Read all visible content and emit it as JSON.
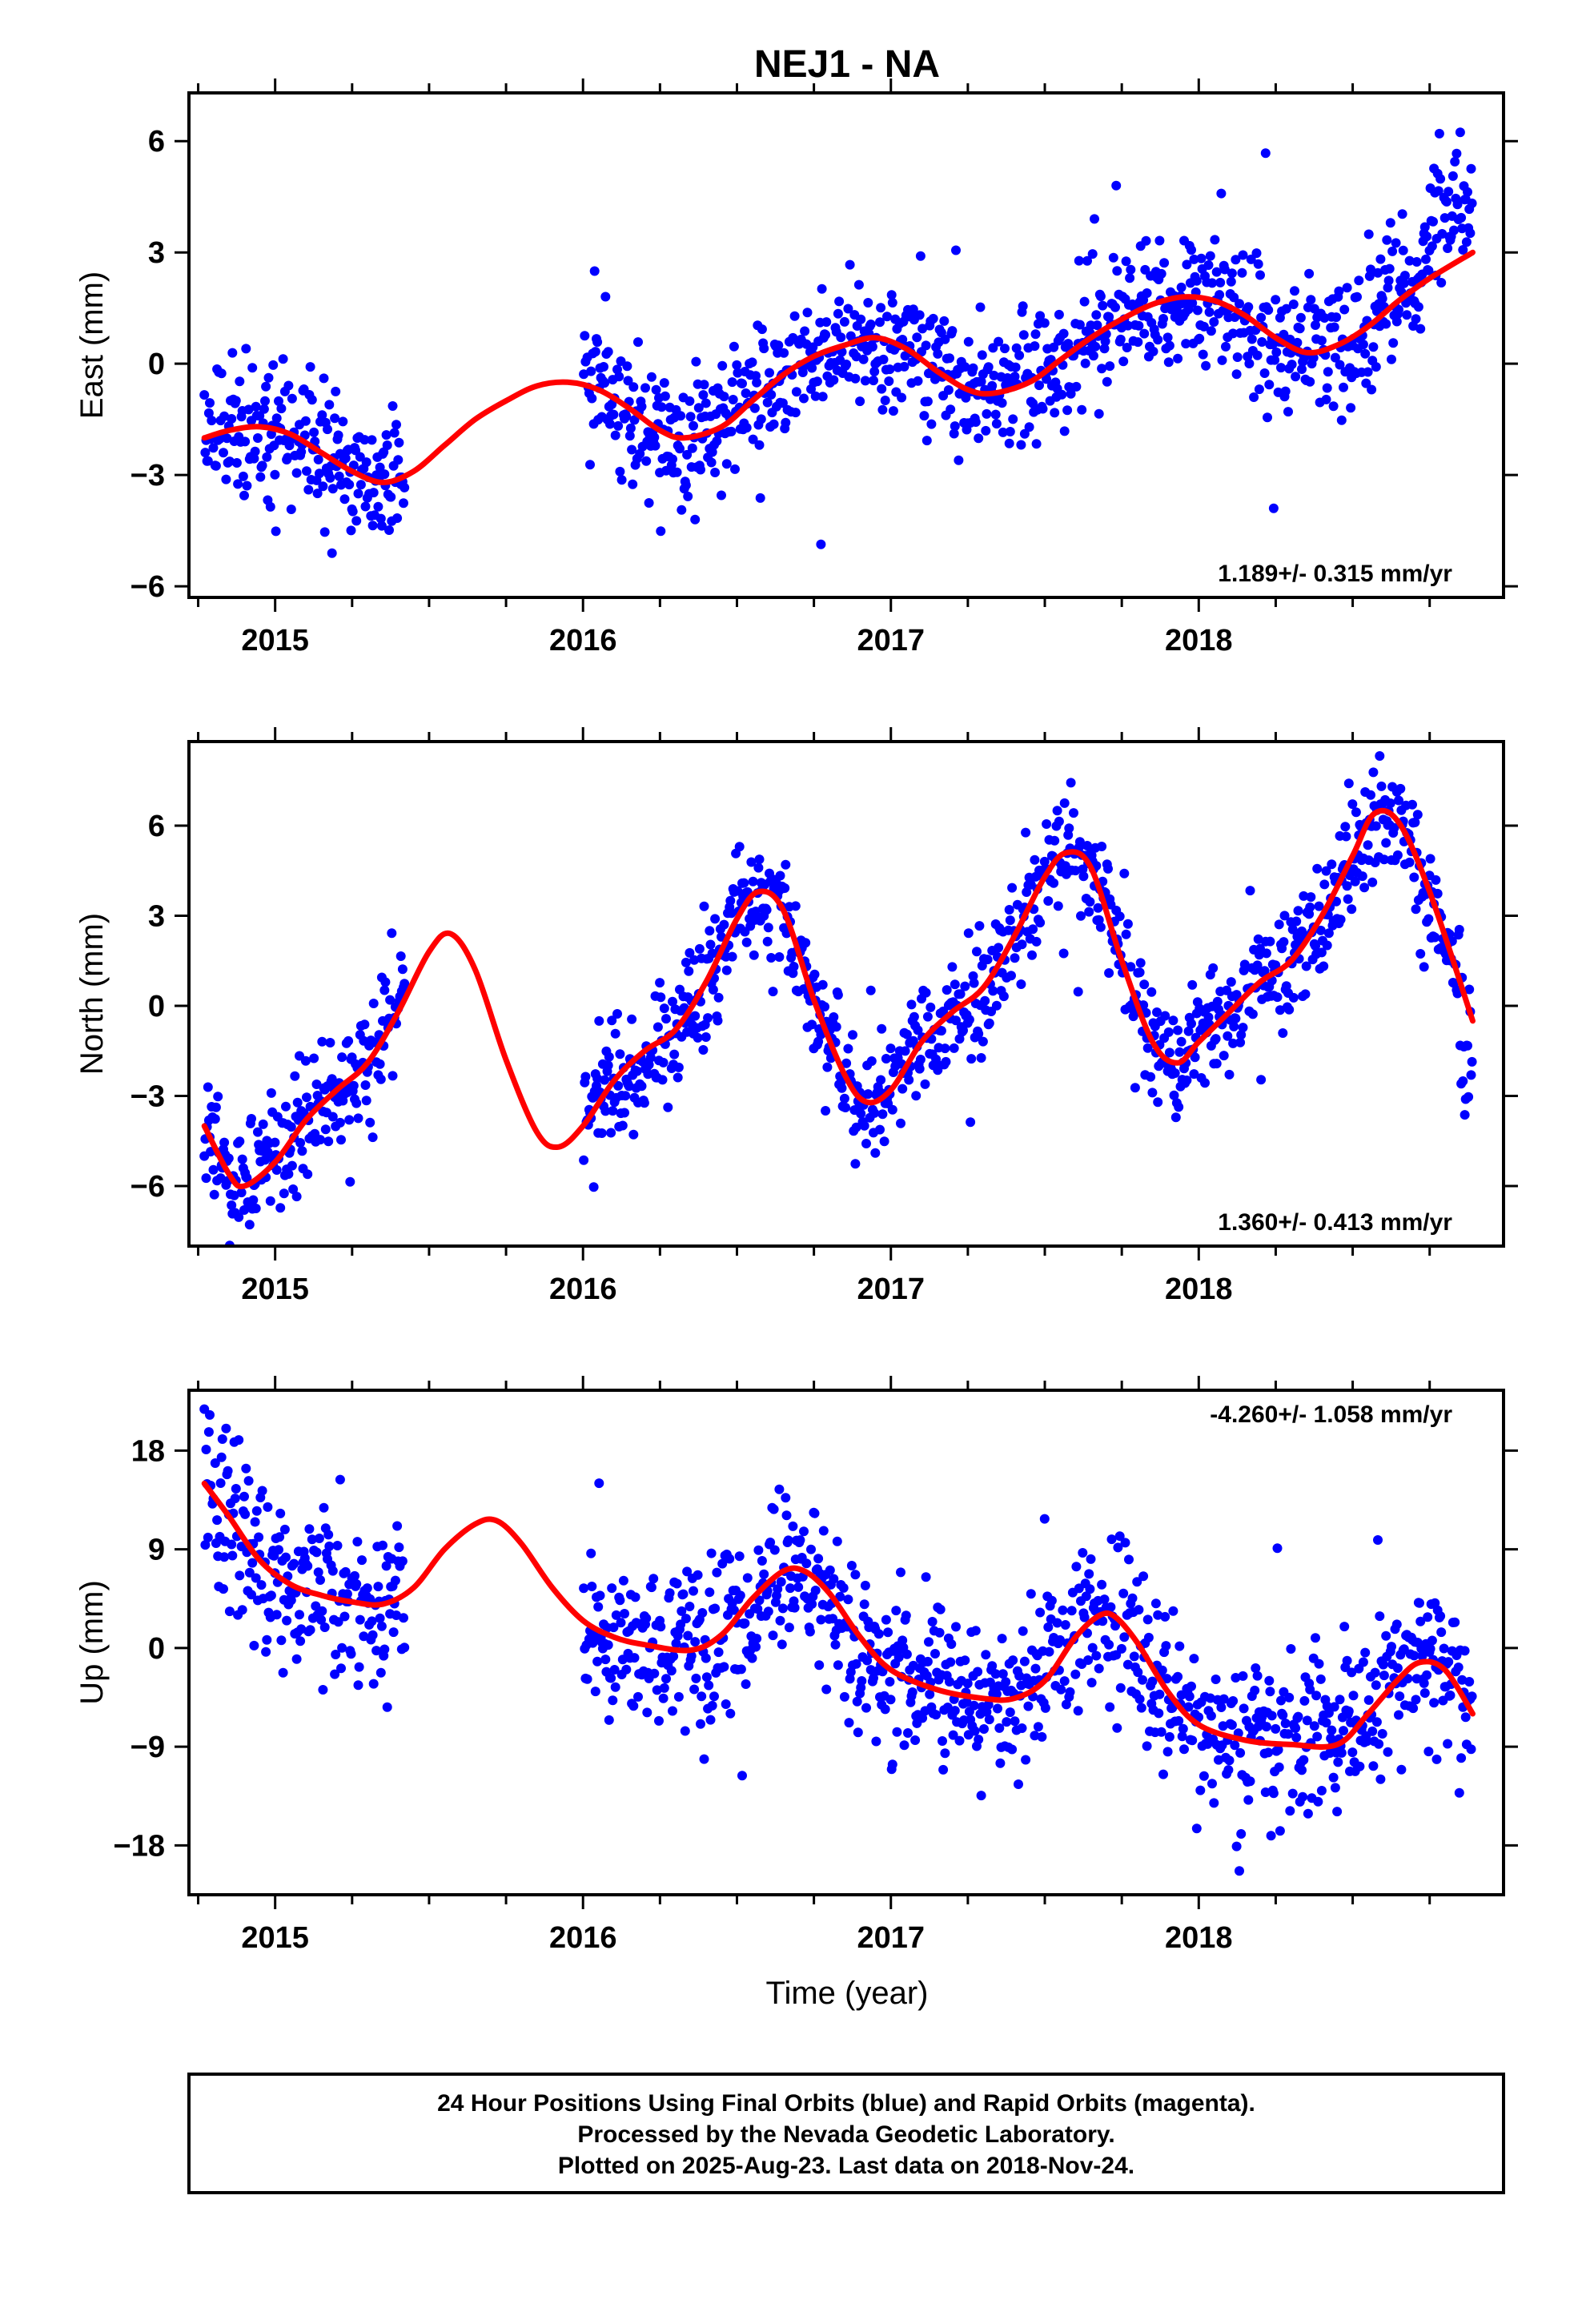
{
  "title": "NEJ1 - NA",
  "footer": {
    "lines": [
      "24 Hour Positions Using Final Orbits (blue) and Rapid Orbits (magenta).",
      "Processed by the Nevada Geodetic Laboratory.",
      "Plotted on 2025-Aug-23. Last data on 2018-Nov-24."
    ]
  },
  "colors": {
    "points": "#0000ff",
    "fit": "#ff0000",
    "frame": "#000000"
  },
  "chart_data": [
    {
      "type": "scatter",
      "ylabel": "East (mm)",
      "xlabel": "",
      "xlim": [
        2014.72,
        2018.99
      ],
      "ylim": [
        -6.3,
        7.3
      ],
      "xticks": [
        2015,
        2016,
        2017,
        2018
      ],
      "yticks": [
        -6,
        -3,
        0,
        3,
        6
      ],
      "ytick_labels": [
        "−6",
        "−3",
        "0",
        "3",
        "6"
      ],
      "rate": "1.189+/- 0.315 mm/yr",
      "rate_position": "bottom-right",
      "gap": [
        2015.42,
        2016.0
      ],
      "fit": {
        "x": [
          2014.77,
          2014.85,
          2014.95,
          2015.05,
          2015.15,
          2015.25,
          2015.35,
          2015.45,
          2015.55,
          2015.65,
          2015.75,
          2015.85,
          2015.95,
          2016.05,
          2016.15,
          2016.25,
          2016.33,
          2016.45,
          2016.55,
          2016.65,
          2016.75,
          2016.85,
          2016.95,
          2017.05,
          2017.15,
          2017.25,
          2017.33,
          2017.45,
          2017.55,
          2017.65,
          2017.75,
          2017.85,
          2017.95,
          2018.05,
          2018.15,
          2018.25,
          2018.35,
          2018.45,
          2018.55,
          2018.65,
          2018.75,
          2018.89
        ],
        "y": [
          -2.0,
          -1.8,
          -1.7,
          -1.9,
          -2.4,
          -2.9,
          -3.2,
          -2.9,
          -2.2,
          -1.5,
          -1.0,
          -0.6,
          -0.5,
          -0.7,
          -1.2,
          -1.8,
          -2.0,
          -1.7,
          -1.0,
          -0.3,
          0.2,
          0.5,
          0.7,
          0.4,
          -0.2,
          -0.7,
          -0.8,
          -0.5,
          0.1,
          0.7,
          1.2,
          1.6,
          1.8,
          1.7,
          1.3,
          0.7,
          0.3,
          0.5,
          1.0,
          1.7,
          2.3,
          3.0
        ]
      },
      "noise": {
        "sd": 0.9,
        "outlier_sd": 1.8,
        "points_per_year": 340,
        "seed": 11
      },
      "late_jump": {
        "from": 2018.75,
        "offset": 1.5
      }
    },
    {
      "type": "scatter",
      "ylabel": "North (mm)",
      "xlabel": "",
      "xlim": [
        2014.72,
        2018.99
      ],
      "ylim": [
        -8.0,
        8.8
      ],
      "xticks": [
        2015,
        2016,
        2017,
        2018
      ],
      "yticks": [
        -6,
        -3,
        0,
        3,
        6
      ],
      "ytick_labels": [
        "−6",
        "−3",
        "0",
        "3",
        "6"
      ],
      "rate": "1.360+/- 0.413 mm/yr",
      "rate_position": "bottom-right",
      "gap": [
        2015.42,
        2016.0
      ],
      "fit": {
        "x": [
          2014.77,
          2014.85,
          2014.9,
          2015.0,
          2015.1,
          2015.2,
          2015.3,
          2015.4,
          2015.5,
          2015.57,
          2015.65,
          2015.75,
          2015.85,
          2015.92,
          2016.0,
          2016.1,
          2016.2,
          2016.3,
          2016.4,
          2016.5,
          2016.57,
          2016.65,
          2016.75,
          2016.85,
          2016.92,
          2017.0,
          2017.1,
          2017.2,
          2017.3,
          2017.4,
          2017.5,
          2017.57,
          2017.65,
          2017.75,
          2017.85,
          2017.93,
          2018.0,
          2018.1,
          2018.2,
          2018.3,
          2018.4,
          2018.5,
          2018.57,
          2018.65,
          2018.75,
          2018.89
        ],
        "y": [
          -4.0,
          -5.6,
          -6.0,
          -5.2,
          -3.8,
          -2.8,
          -1.9,
          -0.2,
          1.8,
          2.4,
          1.2,
          -1.8,
          -4.2,
          -4.7,
          -4.0,
          -2.5,
          -1.5,
          -0.8,
          0.8,
          2.9,
          3.8,
          3.2,
          0.2,
          -2.3,
          -3.2,
          -2.8,
          -1.2,
          -0.2,
          0.6,
          2.3,
          4.3,
          5.1,
          4.6,
          1.5,
          -1.2,
          -1.9,
          -1.2,
          -0.2,
          0.8,
          1.5,
          3.0,
          5.0,
          6.4,
          6.1,
          3.8,
          -0.5
        ]
      },
      "noise": {
        "sd": 0.95,
        "outlier_sd": 1.9,
        "points_per_year": 340,
        "seed": 23
      },
      "late_jump": {
        "from": 2018.85,
        "offset": -1.8
      }
    },
    {
      "type": "scatter",
      "ylabel": "Up (mm)",
      "xlabel": "Time (year)",
      "xlim": [
        2014.72,
        2018.99
      ],
      "ylim": [
        -22.5,
        23.5
      ],
      "xticks": [
        2015,
        2016,
        2017,
        2018
      ],
      "yticks": [
        -18,
        -9,
        0,
        9,
        18
      ],
      "ytick_labels": [
        "−18",
        "−9",
        "0",
        "9",
        "18"
      ],
      "rate": "-4.260+/- 1.058 mm/yr",
      "rate_position": "top-right",
      "gap": [
        2015.42,
        2016.0
      ],
      "fit": {
        "x": [
          2014.77,
          2014.85,
          2014.95,
          2015.05,
          2015.15,
          2015.25,
          2015.35,
          2015.45,
          2015.55,
          2015.65,
          2015.72,
          2015.8,
          2015.9,
          2016.0,
          2016.1,
          2016.2,
          2016.35,
          2016.45,
          2016.55,
          2016.65,
          2016.72,
          2016.8,
          2016.9,
          2017.0,
          2017.15,
          2017.3,
          2017.4,
          2017.5,
          2017.6,
          2017.68,
          2017.73,
          2017.8,
          2017.9,
          2018.0,
          2018.15,
          2018.3,
          2018.45,
          2018.55,
          2018.65,
          2018.72,
          2018.8,
          2018.89
        ],
        "y": [
          15.0,
          12.0,
          8.0,
          5.8,
          4.8,
          4.2,
          4.0,
          5.5,
          9.0,
          11.3,
          11.6,
          9.5,
          5.5,
          2.5,
          1.0,
          0.3,
          -0.2,
          1.2,
          4.5,
          7.0,
          7.0,
          5.0,
          1.0,
          -2.0,
          -3.8,
          -4.6,
          -4.6,
          -3.0,
          1.0,
          3.0,
          2.8,
          0.5,
          -4.0,
          -7.0,
          -8.4,
          -8.8,
          -8.8,
          -6.0,
          -2.8,
          -1.3,
          -2.0,
          -6.0
        ]
      },
      "noise": {
        "sd": 3.6,
        "outlier_sd": 6.5,
        "points_per_year": 340,
        "seed": 37
      }
    }
  ]
}
